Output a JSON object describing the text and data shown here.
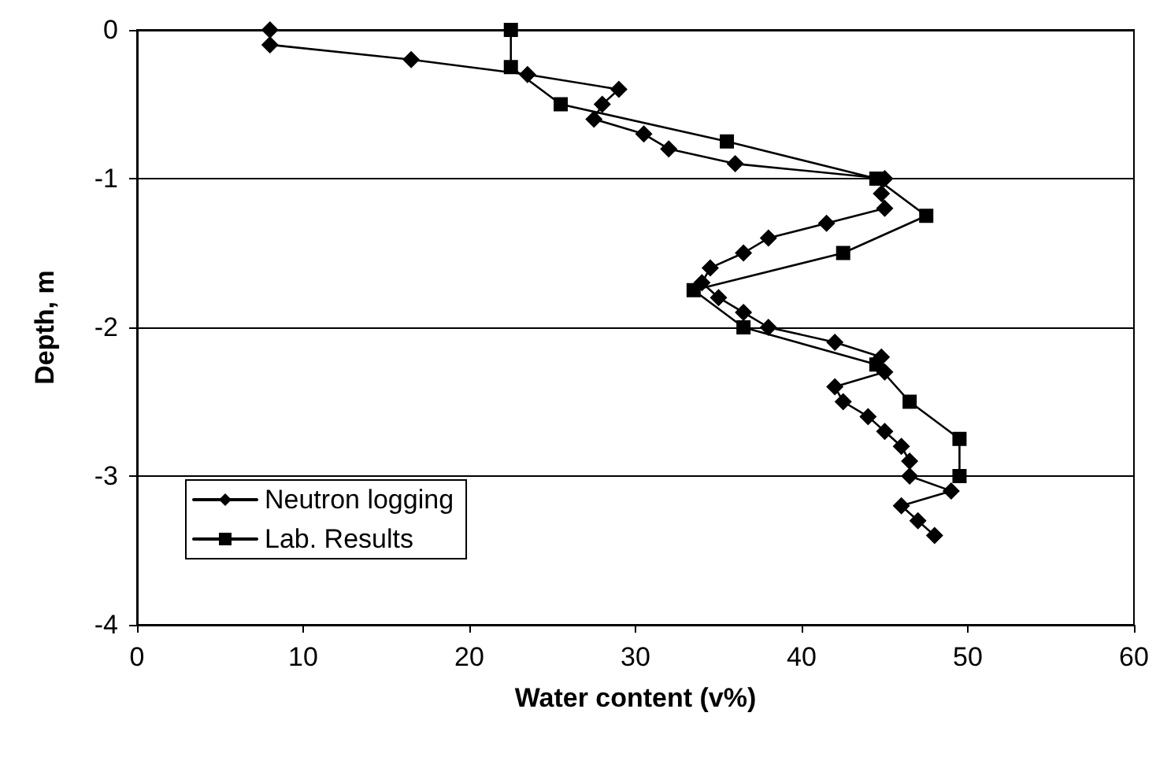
{
  "chart_data": {
    "type": "line",
    "xlabel": "Water content (v%)",
    "ylabel": "Depth, m",
    "xlim": [
      0,
      60
    ],
    "xticks": [
      0,
      10,
      20,
      30,
      40,
      50,
      60
    ],
    "ylim": [
      -4,
      0
    ],
    "yticks": [
      -4,
      -3,
      -2,
      -1,
      0
    ],
    "grid": "y",
    "legend": "bottom left",
    "line_style": "solid",
    "series": [
      {
        "name": "Neutron logging",
        "color": "#000000",
        "marker": "diamond",
        "x": [
          8,
          8,
          16.5,
          23.5,
          29,
          28,
          27.5,
          30.5,
          32,
          36,
          45,
          44.8,
          45,
          41.5,
          38,
          36.5,
          34.5,
          34,
          35,
          36.5,
          38,
          42,
          44.8,
          45,
          42,
          42.5,
          44,
          45,
          46,
          46.5,
          46.5,
          49,
          46,
          47,
          48
        ],
        "values": [
          0,
          -0.1,
          -0.2,
          -0.3,
          -0.4,
          -0.5,
          -0.6,
          -0.7,
          -0.8,
          -0.9,
          -1.0,
          -1.1,
          -1.2,
          -1.3,
          -1.4,
          -1.5,
          -1.6,
          -1.7,
          -1.8,
          -1.9,
          -2.0,
          -2.1,
          -2.2,
          -2.3,
          -2.4,
          -2.5,
          -2.6,
          -2.7,
          -2.8,
          -2.9,
          -3.0,
          -3.1,
          -3.2,
          -3.3,
          -3.4
        ]
      },
      {
        "name": "Lab. Results",
        "color": "#000000",
        "marker": "square",
        "x": [
          22.5,
          22.5,
          25.5,
          35.5,
          44.5,
          47.5,
          42.5,
          33.5,
          36.5,
          44.5,
          46.5,
          49.5,
          49.5
        ],
        "values": [
          0,
          -0.25,
          -0.5,
          -0.75,
          -1.0,
          -1.25,
          -1.5,
          -1.75,
          -2.0,
          -2.25,
          -2.5,
          -2.75,
          -3.0
        ]
      }
    ]
  }
}
